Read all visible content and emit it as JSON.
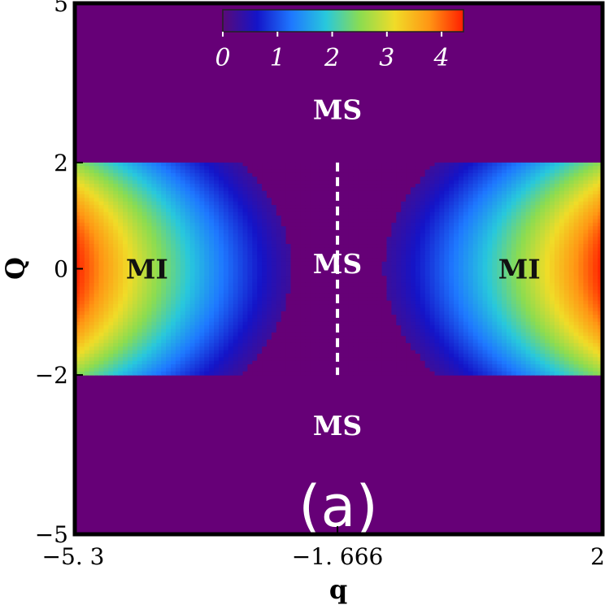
{
  "chart_data": {
    "type": "heatmap",
    "title": "",
    "xlabel": "q",
    "ylabel": "Q",
    "xlim": [
      -5.3,
      2
    ],
    "ylim": [
      -5,
      5
    ],
    "x_ticks": [
      {
        "value": -5.3,
        "label": "−5. 3"
      },
      {
        "value": -1.666,
        "label": "−1. 666"
      },
      {
        "value": 2,
        "label": "2"
      }
    ],
    "y_ticks": [
      {
        "value": 5,
        "label": "5"
      },
      {
        "value": 2,
        "label": "2"
      },
      {
        "value": 0,
        "label": "0"
      },
      {
        "value": -2,
        "label": "−2"
      },
      {
        "value": -5,
        "label": "−5"
      }
    ],
    "colorbar": {
      "min": 0,
      "max": 4.4,
      "ticks": [
        {
          "value": 0,
          "label": "0"
        },
        {
          "value": 1,
          "label": "1"
        },
        {
          "value": 2,
          "label": "2"
        },
        {
          "value": 3,
          "label": "3"
        },
        {
          "value": 4,
          "label": "4"
        }
      ],
      "colors": [
        "#5a0a78",
        "#1414c8",
        "#1e78ff",
        "#28c8dc",
        "#8cdc50",
        "#f0dc28",
        "#ff9614",
        "#ff1e00"
      ],
      "placement": "top-center"
    },
    "band": {
      "Q_min": -2,
      "Q_max": 2,
      "peak_value": 4.4,
      "peak_q": [
        -5.3,
        2
      ]
    },
    "background_color": "#660077",
    "dashed_line": {
      "q": -1.666,
      "Q_range": [
        -2,
        2
      ],
      "color": "#ffffff"
    },
    "annotations": [
      {
        "text": "MS",
        "q": -1.666,
        "Q": 3.0,
        "color": "white"
      },
      {
        "text": "MS",
        "q": -1.666,
        "Q": 0.1,
        "color": "white"
      },
      {
        "text": "MS",
        "q": -1.666,
        "Q": -2.95,
        "color": "white"
      },
      {
        "text": "MI",
        "q": -4.3,
        "Q": 0.0,
        "color": "black"
      },
      {
        "text": "MI",
        "q": 0.85,
        "Q": 0.0,
        "color": "black"
      }
    ],
    "panel_label": "(a)",
    "grid": false
  }
}
